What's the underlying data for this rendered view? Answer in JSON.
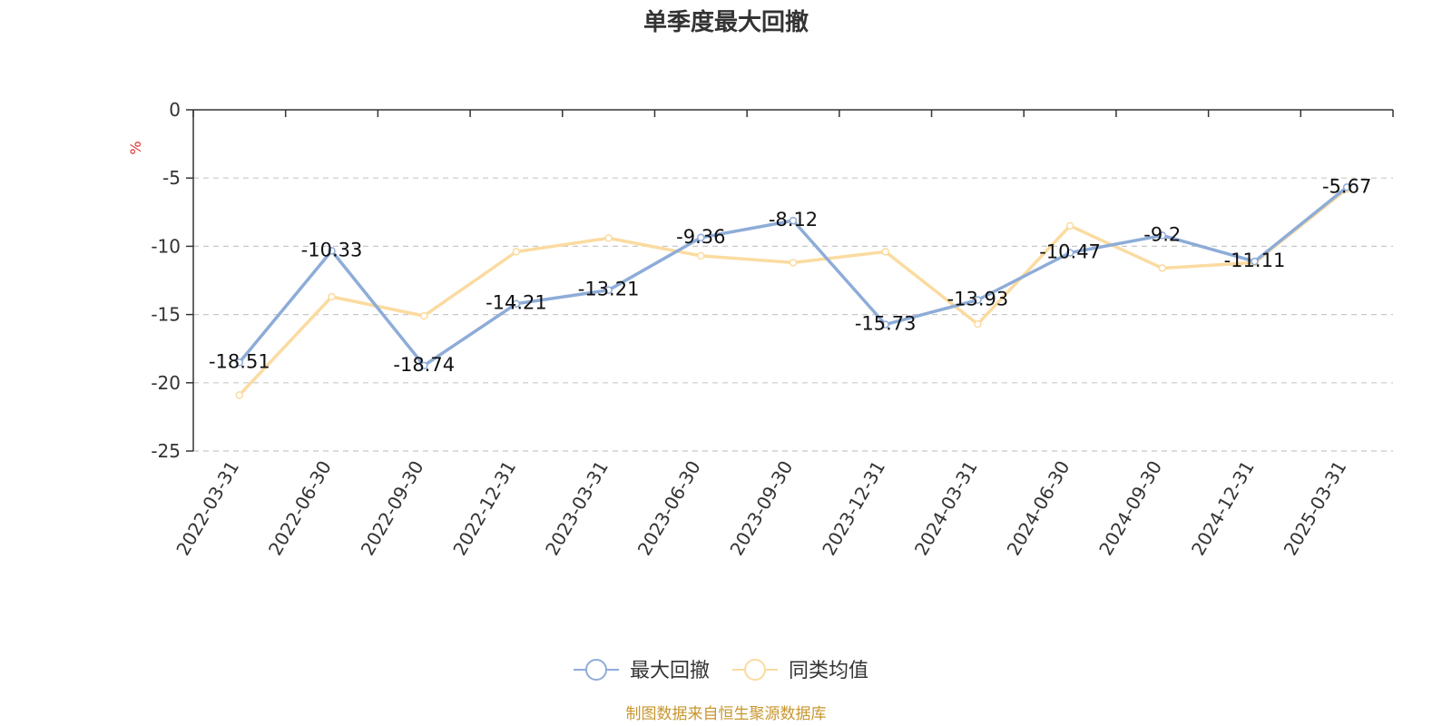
{
  "chart_data": {
    "type": "line",
    "title": "单季度最大回撤",
    "ylabel": "%",
    "ylim": [
      -25,
      0
    ],
    "yticks": [
      0,
      -5,
      -10,
      -15,
      -20,
      -25
    ],
    "grid": true,
    "legend_position": "bottom",
    "categories": [
      "2022-03-31",
      "2022-06-30",
      "2022-09-30",
      "2022-12-31",
      "2023-03-31",
      "2023-06-30",
      "2023-09-30",
      "2023-12-31",
      "2024-03-31",
      "2024-06-30",
      "2024-09-30",
      "2024-12-31",
      "2025-03-31"
    ],
    "series": [
      {
        "name": "最大回撤",
        "color": "#8eacd8",
        "values": [
          -18.51,
          -10.33,
          -18.74,
          -14.21,
          -13.21,
          -9.36,
          -8.12,
          -15.73,
          -13.93,
          -10.47,
          -9.2,
          -11.11,
          -5.67
        ],
        "show_labels": true
      },
      {
        "name": "同类均值",
        "color": "#fbdba0",
        "values": [
          -20.9,
          -13.7,
          -15.1,
          -10.4,
          -9.4,
          -10.7,
          -11.2,
          -10.4,
          -15.7,
          -8.5,
          -11.6,
          -11.2,
          -5.8
        ],
        "show_labels": false
      }
    ],
    "source": "制图数据来自恒生聚源数据库",
    "unit_color": "#e03030",
    "source_color": "#c8962e"
  }
}
